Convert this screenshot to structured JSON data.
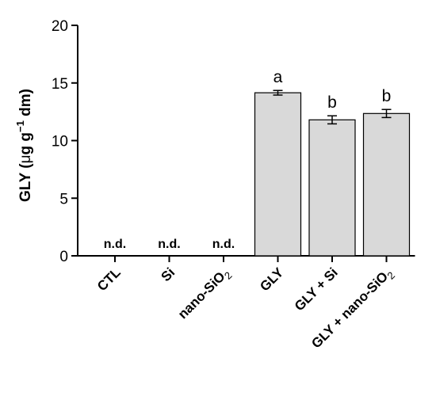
{
  "chart_data": {
    "type": "bar",
    "ylabel_parts": [
      "GLY (",
      "μ",
      "g g",
      "−1",
      " dm)"
    ],
    "ylim": [
      0,
      20
    ],
    "yticks": [
      0,
      5,
      10,
      15,
      20
    ],
    "categories": [
      {
        "label": "CTL"
      },
      {
        "label": "Si"
      },
      {
        "label": "nano-SiO",
        "sub": "2"
      },
      {
        "label": "GLY"
      },
      {
        "label": "GLY + Si"
      },
      {
        "label": "GLY + nano-SiO",
        "sub": "2"
      }
    ],
    "values": [
      null,
      null,
      null,
      14.15,
      11.8,
      12.35
    ],
    "errors": [
      null,
      null,
      null,
      0.2,
      0.35,
      0.35
    ],
    "annotations": [
      "n.d.",
      "n.d.",
      "n.d.",
      "a",
      "b",
      "b"
    ],
    "colors": {
      "bar_fill": "#d9d9d9",
      "bar_edge": "#000000"
    }
  }
}
